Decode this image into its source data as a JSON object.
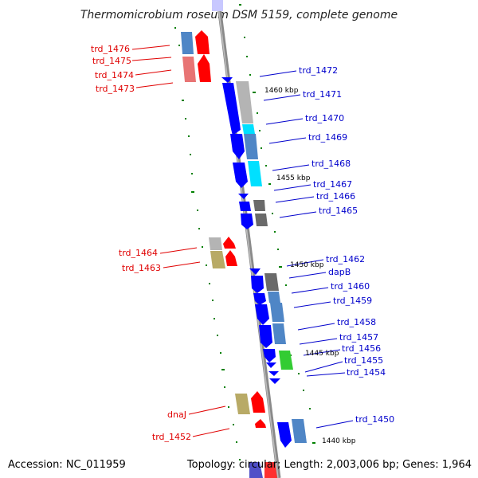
{
  "title": "Thermomicrobium roseum DSM 5159, complete genome",
  "footer": {
    "accession": "Accession: NC_011959",
    "topology": "Topology: circular; Length: 2,003,006 bp; Genes: 1,964"
  },
  "colors": {
    "red": "#ff0000",
    "pink": "#e87474",
    "steel": "#4f86c6",
    "blue": "#0000ff",
    "grey": "#b4b4b4",
    "cyan": "#00e0ff",
    "dark_grey": "#6a6a6a",
    "olive": "#b8aa66",
    "green": "#33cc33",
    "left_label": "#e00000",
    "right_label": "#0000cc",
    "tick": "#008000"
  },
  "left_labels": [
    "trd_1476",
    "trd_1475",
    "trd_1474",
    "trd_1473",
    "trd_1464",
    "trd_1463",
    "dnaJ",
    "trd_1452"
  ],
  "right_labels": [
    "trd_1472",
    "trd_1471",
    "trd_1470",
    "trd_1469",
    "trd_1468",
    "trd_1467",
    "trd_1466",
    "trd_1465",
    "trd_1462",
    "dapB",
    "trd_1460",
    "trd_1459",
    "trd_1458",
    "trd_1457",
    "trd_1456",
    "trd_1455",
    "trd_1454",
    "trd_1450"
  ],
  "kbp_labels": [
    "1460 kbp",
    "1455 kbp",
    "1450 kbp",
    "1445 kbp",
    "1440 kbp"
  ]
}
